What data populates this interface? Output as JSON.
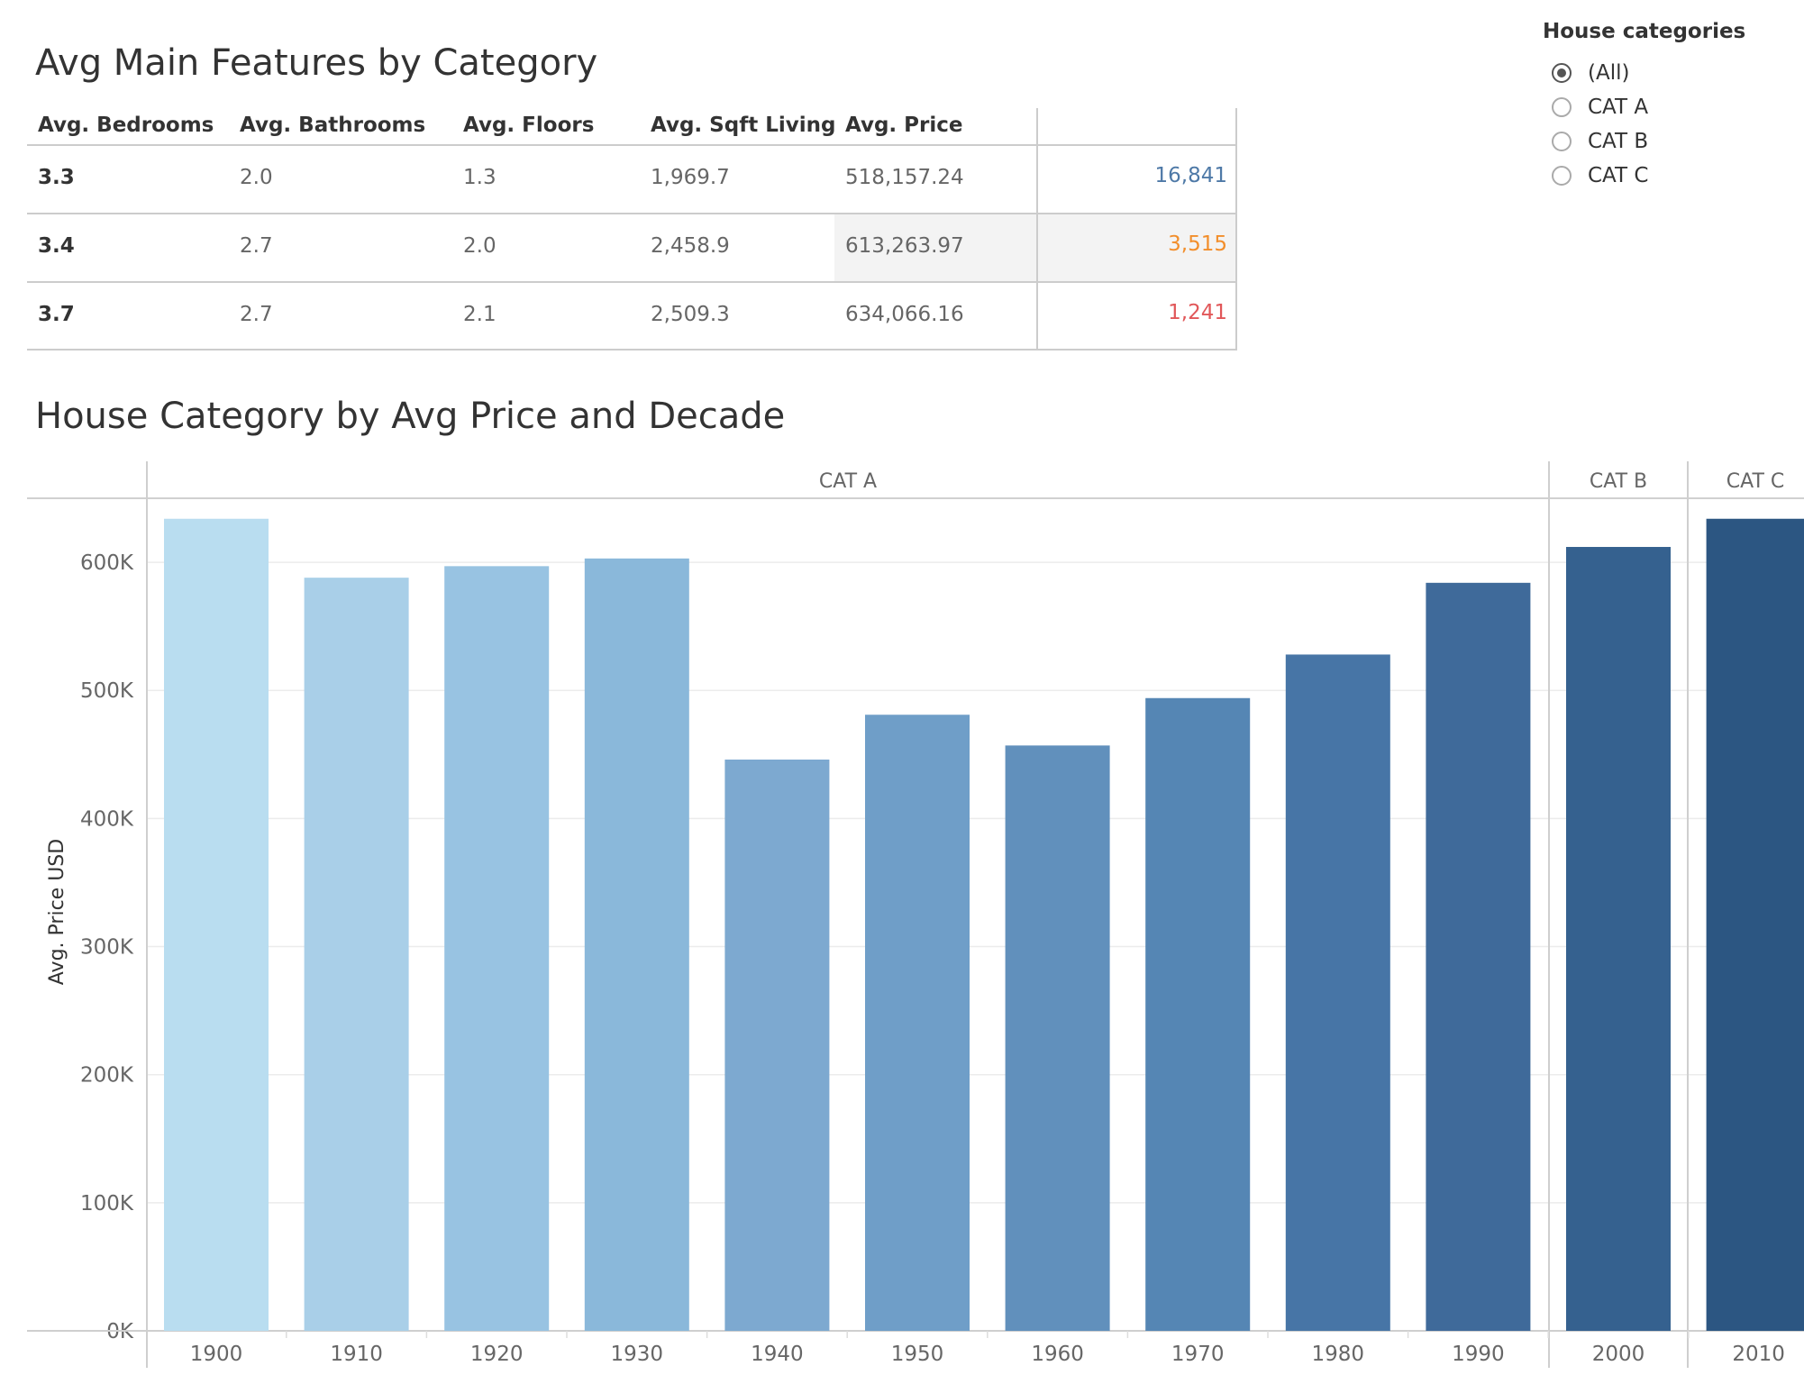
{
  "table": {
    "title": "Avg Main Features by Category",
    "headers": [
      "Avg. Bedrooms",
      "Avg. Bathrooms",
      "Avg. Floors",
      "Avg. Sqft Living",
      "Avg. Price"
    ],
    "rows": [
      {
        "bedrooms": "3.3",
        "bathrooms": "2.0",
        "floors": "1.3",
        "sqft": "1,969.7",
        "price": "518,157.24",
        "count": "16,841"
      },
      {
        "bedrooms": "3.4",
        "bathrooms": "2.7",
        "floors": "2.0",
        "sqft": "2,458.9",
        "price": "613,263.97",
        "count": "3,515"
      },
      {
        "bedrooms": "3.7",
        "bathrooms": "2.7",
        "floors": "2.1",
        "sqft": "2,509.3",
        "price": "634,066.16",
        "count": "1,241"
      }
    ],
    "count_colors": [
      "#4e79a7",
      "#f28e2b",
      "#e15759"
    ],
    "highlight_row": 2
  },
  "filter": {
    "title": "House categories",
    "options": [
      "(All)",
      "CAT A",
      "CAT B",
      "CAT C"
    ],
    "selected": "(All)"
  },
  "chart_data": {
    "type": "bar",
    "title": "House Category by Avg Price and Decade",
    "ylabel": "Avg. Price USD",
    "xlabel": "",
    "ylim": [
      0,
      650000
    ],
    "yticks": [
      0,
      100000,
      200000,
      300000,
      400000,
      500000,
      600000
    ],
    "ytick_labels": [
      "0K",
      "100K",
      "200K",
      "300K",
      "400K",
      "500K",
      "600K"
    ],
    "grid": true,
    "panels": [
      {
        "name": "CAT A",
        "categories": [
          "1900",
          "1910",
          "1920",
          "1930",
          "1940",
          "1950",
          "1960",
          "1970",
          "1980",
          "1990"
        ],
        "values": [
          634000,
          588000,
          597000,
          603000,
          446000,
          481000,
          457000,
          494000,
          528000,
          584000
        ]
      },
      {
        "name": "CAT B",
        "categories": [
          "2000"
        ],
        "values": [
          612000
        ]
      },
      {
        "name": "CAT C",
        "categories": [
          "2010"
        ],
        "values": [
          634000
        ]
      }
    ],
    "colors": [
      "#b9ddf0",
      "#a9cfe8",
      "#98c3e2",
      "#8ab8da",
      "#7da9d0",
      "#6f9ec8",
      "#6190bc",
      "#5586b4",
      "#4775a6",
      "#3f6a9a",
      "#35618f",
      "#2c5682"
    ]
  }
}
